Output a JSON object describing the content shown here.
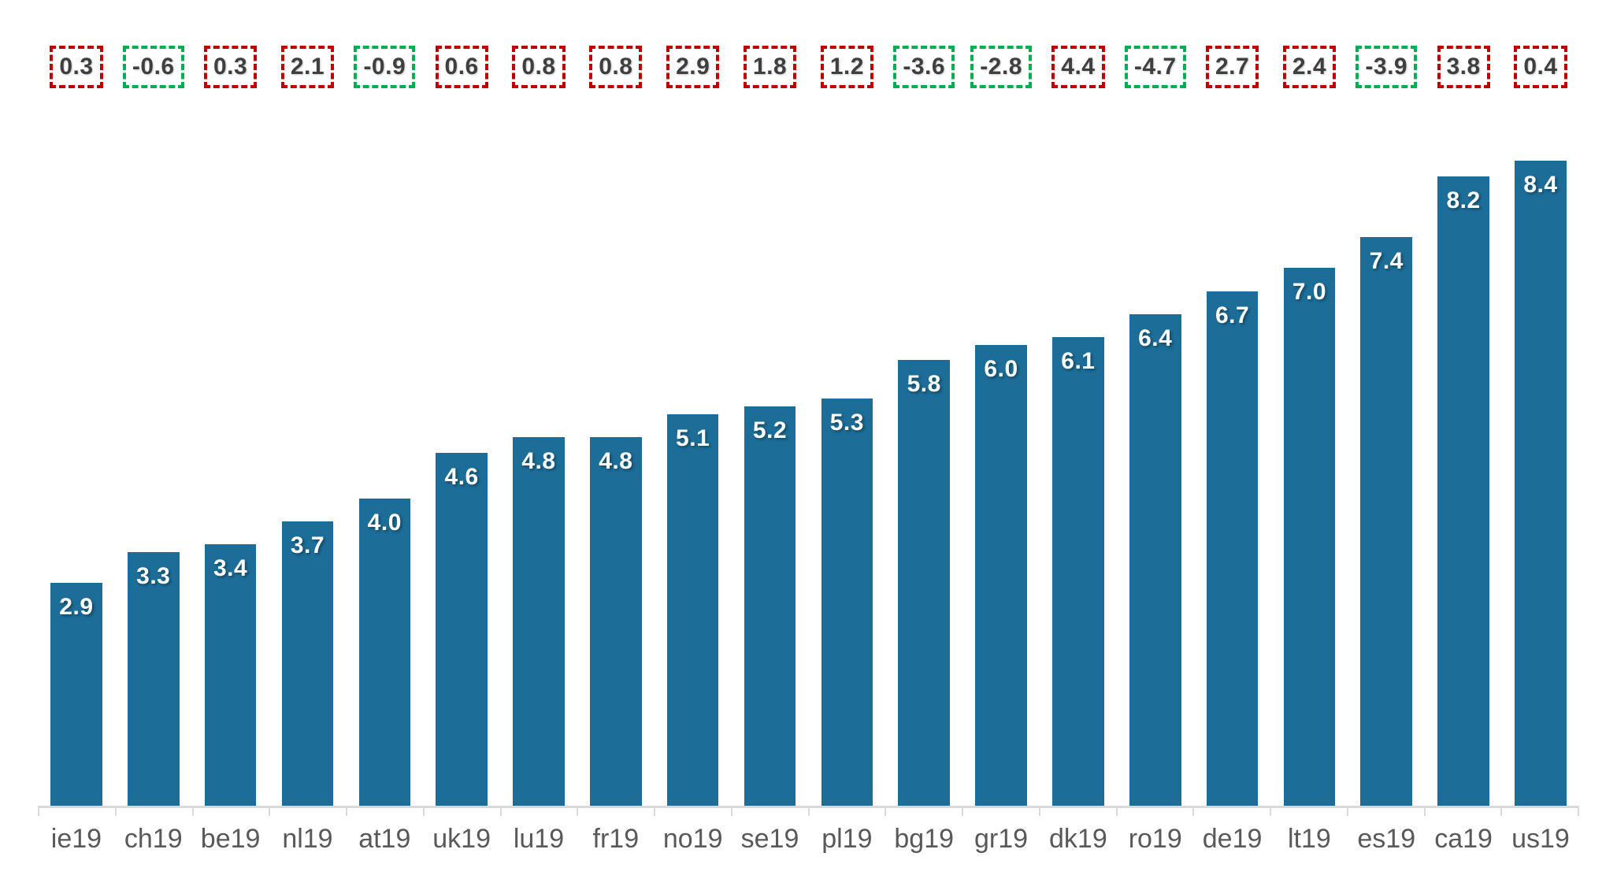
{
  "chart_data": {
    "type": "bar",
    "title": "",
    "xlabel": "",
    "ylabel": "",
    "ylim": [
      0,
      9.3
    ],
    "grid": false,
    "legend_position": "none",
    "categories": [
      "ie19",
      "ch19",
      "be19",
      "nl19",
      "at19",
      "uk19",
      "lu19",
      "fr19",
      "no19",
      "se19",
      "pl19",
      "bg19",
      "gr19",
      "dk19",
      "ro19",
      "de19",
      "lt19",
      "es19",
      "ca19",
      "us19"
    ],
    "values": [
      2.9,
      3.3,
      3.4,
      3.7,
      4.0,
      4.6,
      4.8,
      4.8,
      5.1,
      5.2,
      5.3,
      5.8,
      6.0,
      6.1,
      6.4,
      6.7,
      7.0,
      7.4,
      8.2,
      8.4
    ],
    "value_labels": [
      "2.9",
      "3.3",
      "3.4",
      "3.7",
      "4.0",
      "4.6",
      "4.8",
      "4.8",
      "5.1",
      "5.2",
      "5.3",
      "5.8",
      "6.0",
      "6.1",
      "6.4",
      "6.7",
      "7.0",
      "7.4",
      "8.2",
      "8.4"
    ],
    "delta_annotations": [
      "0.3",
      "-0.6",
      "0.3",
      "2.1",
      "-0.9",
      "0.6",
      "0.8",
      "0.8",
      "2.9",
      "1.8",
      "1.2",
      "-3.6",
      "-2.8",
      "4.4",
      "-4.7",
      "2.7",
      "2.4",
      "-3.9",
      "3.8",
      "0.4"
    ],
    "delta_box_colors": [
      "red",
      "green",
      "red",
      "red",
      "green",
      "red",
      "red",
      "red",
      "red",
      "red",
      "red",
      "green",
      "green",
      "red",
      "green",
      "red",
      "red",
      "green",
      "red",
      "red"
    ],
    "colors": {
      "bar": "#1C6D98",
      "bar_value_label": "#FFFFFF",
      "delta_box_red_border": "#C00000",
      "delta_box_green_border": "#00B050",
      "delta_text": "#3F3F3F",
      "axis_line": "#D9D9D9",
      "category_label": "#595959",
      "background": "#FFFFFF"
    }
  }
}
